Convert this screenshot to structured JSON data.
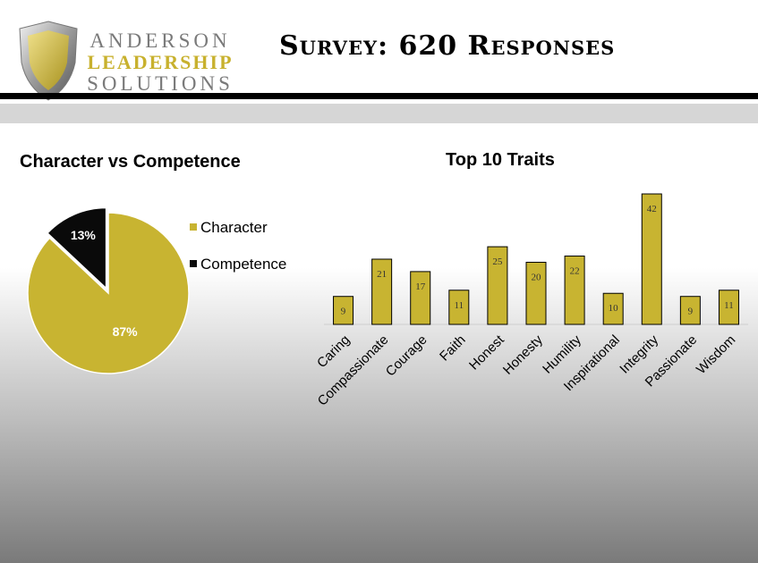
{
  "header": {
    "logo_line1": "ANDERSON",
    "logo_line2": "LEADERSHIP",
    "logo_line3": "SOLUTIONS",
    "title": "Survey:  620 Responses"
  },
  "colors": {
    "gold": "#c8b431",
    "black": "#0a0a0a"
  },
  "chart_data": [
    {
      "type": "pie",
      "title": "Character vs Competence",
      "slices": [
        {
          "label": "Character",
          "value": 87,
          "data_label": "87%",
          "color": "#c8b431"
        },
        {
          "label": "Competence",
          "value": 13,
          "data_label": "13%",
          "color": "#0a0a0a"
        }
      ],
      "legend_position": "right"
    },
    {
      "type": "bar",
      "title": "Top 10 Traits",
      "categories": [
        "Caring",
        "Compassionate",
        "Courage",
        "Faith",
        "Honest",
        "Honesty",
        "Humility",
        "Inspirational",
        "Integrity",
        "Passionate",
        "Wisdom"
      ],
      "values": [
        9,
        21,
        17,
        11,
        25,
        20,
        22,
        10,
        42,
        9,
        11
      ],
      "ylim": [
        0,
        42
      ],
      "grid": false,
      "color": "#c8b431"
    }
  ]
}
